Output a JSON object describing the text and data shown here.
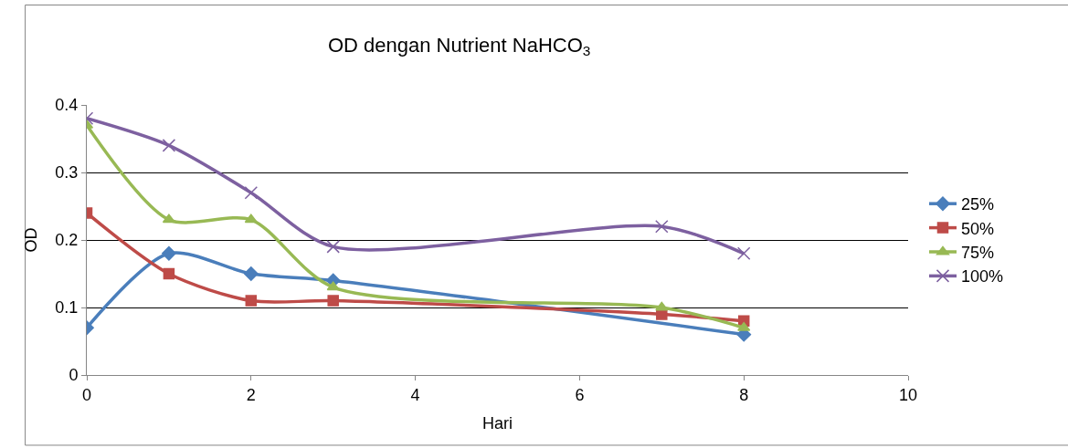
{
  "chart_data": {
    "type": "line",
    "title": "OD dengan Nutrient NaHCO$_{3}$",
    "xlabel": "Hari",
    "ylabel": "OD",
    "x": [
      0,
      1,
      2,
      3,
      7,
      8
    ],
    "series": [
      {
        "name": "25%",
        "color": "#4a7ebb",
        "marker": "diamond",
        "values": [
          0.07,
          0.18,
          0.15,
          0.14,
          null,
          0.06
        ]
      },
      {
        "name": "50%",
        "color": "#be4b48",
        "marker": "square",
        "values": [
          0.24,
          0.15,
          0.11,
          0.11,
          0.09,
          0.08
        ]
      },
      {
        "name": "75%",
        "color": "#98b954",
        "marker": "triangle",
        "values": [
          0.37,
          0.23,
          0.23,
          0.13,
          0.1,
          0.07
        ]
      },
      {
        "name": "100%",
        "color": "#7d60a0",
        "marker": "cross",
        "values": [
          0.38,
          0.34,
          0.27,
          0.19,
          0.22,
          0.18
        ]
      }
    ],
    "xlim": [
      0,
      10
    ],
    "xticks": [
      0,
      2,
      4,
      6,
      8,
      10
    ],
    "ylim": [
      0,
      0.4
    ],
    "yticks": [
      0,
      0.1,
      0.2,
      0.3,
      0.4
    ],
    "grid": "y",
    "legend": "right"
  }
}
